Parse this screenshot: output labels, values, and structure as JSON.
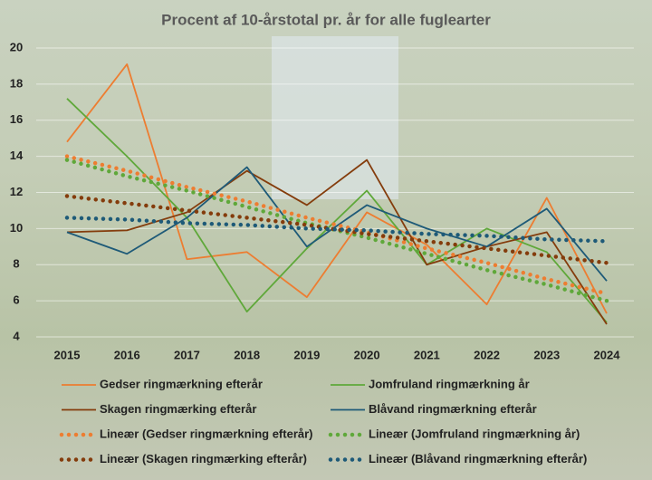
{
  "chart_data": {
    "type": "line",
    "title": "Procent af 10-årstotal pr. år for alle fuglearter",
    "categories": [
      "2015",
      "2016",
      "2017",
      "2018",
      "2019",
      "2020",
      "2021",
      "2022",
      "2023",
      "2024"
    ],
    "ylim": [
      4,
      20
    ],
    "yticks": [
      4,
      6,
      8,
      10,
      12,
      14,
      16,
      18,
      20
    ],
    "grid": true,
    "series": [
      {
        "name": "Gedser ringmærkning efterår",
        "color": "#ed7d31",
        "style": "solid",
        "values": [
          14.8,
          19.1,
          8.3,
          8.7,
          6.2,
          10.9,
          9.1,
          5.8,
          11.7,
          5.3
        ]
      },
      {
        "name": "Jomfruland ringmærkning år",
        "color": "#5fa83a",
        "style": "solid",
        "values": [
          17.2,
          14.0,
          10.6,
          5.4,
          8.9,
          12.1,
          8.0,
          10.0,
          8.7,
          4.8
        ]
      },
      {
        "name": "Skagen ringmærking efterår",
        "color": "#843c0c",
        "style": "solid",
        "values": [
          9.8,
          9.9,
          10.9,
          13.2,
          11.3,
          13.8,
          8.0,
          9.0,
          9.8,
          4.7
        ]
      },
      {
        "name": "Blåvand ringmærkning efterår",
        "color": "#1e5a78",
        "style": "solid",
        "values": [
          9.8,
          8.6,
          10.6,
          13.4,
          9.0,
          11.3,
          10.0,
          9.0,
          11.1,
          7.1
        ]
      },
      {
        "name": "Lineær (Gedser ringmærkning efterår)",
        "color": "#ed7d31",
        "style": "dotted",
        "values": [
          14.0,
          13.2,
          12.3,
          11.5,
          10.6,
          9.8,
          8.9,
          8.1,
          7.2,
          6.4
        ]
      },
      {
        "name": "Lineær (Jomfruland ringmærkning år)",
        "color": "#5fa83a",
        "style": "dotted",
        "values": [
          13.8,
          12.9,
          12.1,
          11.2,
          10.3,
          9.5,
          8.6,
          7.7,
          6.9,
          6.0
        ]
      },
      {
        "name": "Lineær (Skagen ringmærking efterår)",
        "color": "#843c0c",
        "style": "dotted",
        "values": [
          11.8,
          11.4,
          11.0,
          10.6,
          10.2,
          9.7,
          9.3,
          8.9,
          8.5,
          8.1
        ]
      },
      {
        "name": "Lineær (Blåvand ringmærkning efterår)",
        "color": "#1e5a78",
        "style": "dotted",
        "values": [
          10.6,
          10.5,
          10.3,
          10.2,
          10.0,
          9.9,
          9.7,
          9.6,
          9.4,
          9.3
        ]
      }
    ]
  }
}
